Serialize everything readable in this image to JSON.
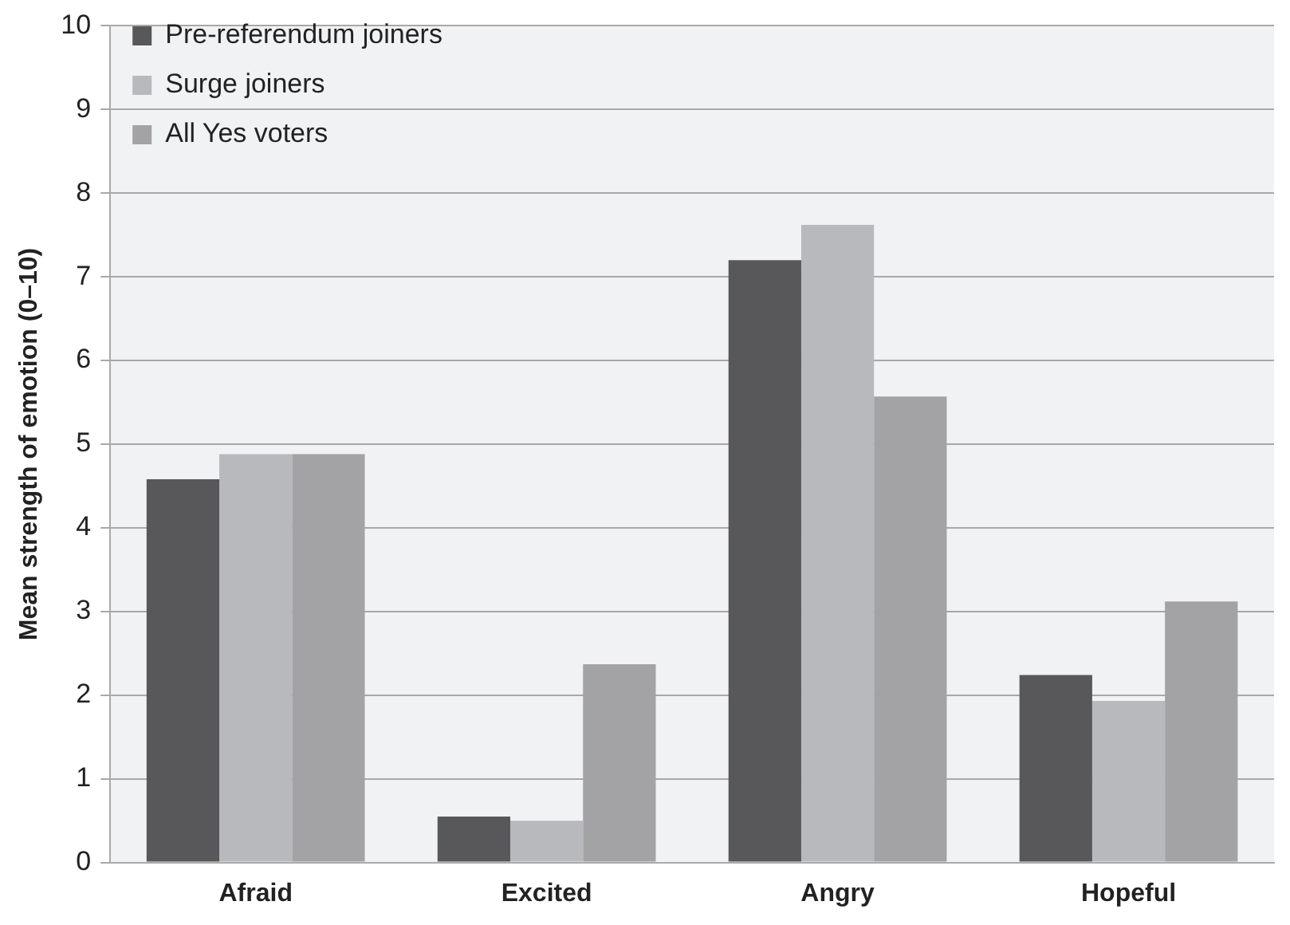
{
  "chart_data": {
    "type": "bar",
    "ylabel": "Mean strength of emotion (0–10)",
    "categories": [
      "Afraid",
      "Excited",
      "Angry",
      "Hopeful"
    ],
    "series": [
      {
        "name": "Pre-referendum joiners",
        "color": "#58585a",
        "values": [
          4.58,
          0.55,
          7.2,
          2.24
        ]
      },
      {
        "name": "Surge joiners",
        "color": "#b8b9bc",
        "values": [
          4.88,
          0.5,
          7.62,
          1.93
        ]
      },
      {
        "name": "All Yes voters",
        "color": "#a3a3a5",
        "values": [
          4.88,
          2.37,
          5.57,
          3.12
        ]
      }
    ],
    "ylim": [
      0,
      10
    ],
    "yticks": [
      0,
      1,
      2,
      3,
      4,
      5,
      6,
      7,
      8,
      9,
      10
    ],
    "grid": "y",
    "legend": "top left"
  }
}
